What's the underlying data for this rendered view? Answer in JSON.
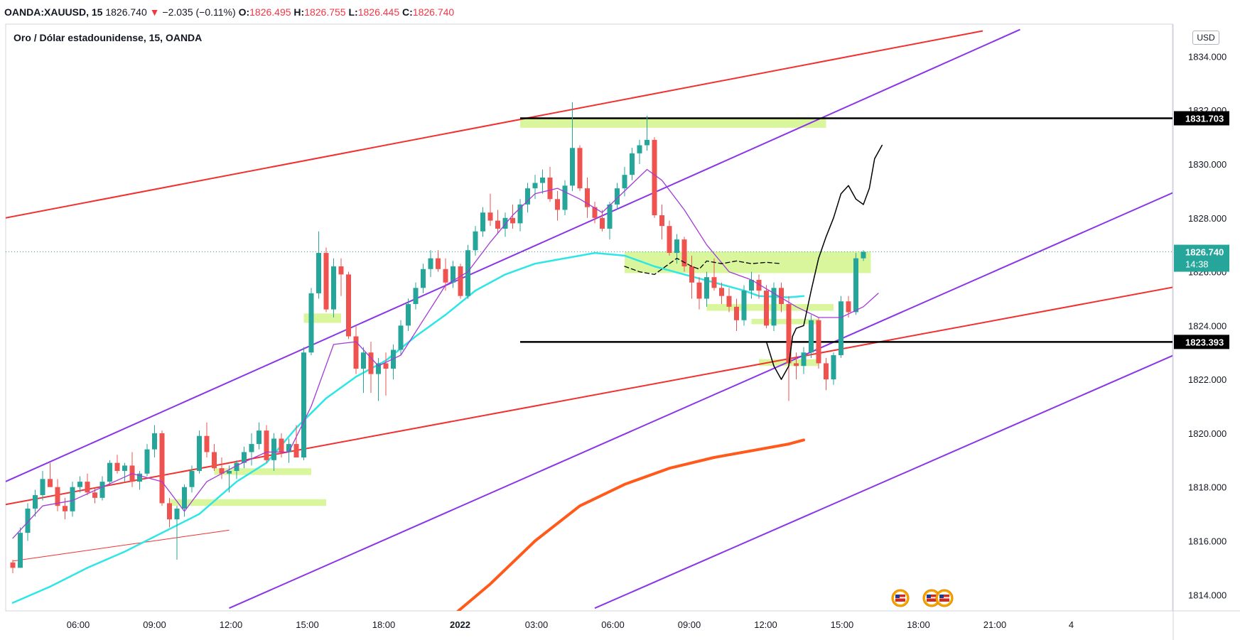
{
  "header": {
    "symbol": "OANDA:XAUUSD, 15",
    "last": "1826.740",
    "change": "−2.035 (−0.11%)",
    "o_label": "O:",
    "o_value": "1826.495",
    "h_label": "H:",
    "h_value": "1826.755",
    "l_label": "L:",
    "l_value": "1826.445",
    "c_label": "C:",
    "c_value": "1826.740"
  },
  "chart_title": "Oro / Dólar estadounidense, 15, OANDA",
  "currency": "USD",
  "colors": {
    "up": "#26a69a",
    "down": "#ef5350",
    "red_channel": "#f23030",
    "purple_channel": "#8b34e8",
    "cyan_ma": "#2ee6e6",
    "purple_ma": "#a23ad6",
    "orange_ma": "#ff5a1a",
    "zone": "#d4f58c",
    "price_line": "#26a69a"
  },
  "chart_data": {
    "type": "candlestick",
    "timeframe": "15",
    "ylim": [
      1813.4,
      1835.2
    ],
    "y_ticks": [
      "1834.000",
      "1832.000",
      "1830.000",
      "1828.000",
      "1826.000",
      "1824.000",
      "1822.000",
      "1820.000",
      "1818.000",
      "1816.000",
      "1814.000"
    ],
    "x_ticks": [
      {
        "label": "06:00",
        "bold": false
      },
      {
        "label": "09:00",
        "bold": false
      },
      {
        "label": "12:00",
        "bold": false
      },
      {
        "label": "15:00",
        "bold": false
      },
      {
        "label": "18:00",
        "bold": false
      },
      {
        "label": "2022",
        "bold": true
      },
      {
        "label": "03:00",
        "bold": false
      },
      {
        "label": "06:00",
        "bold": false
      },
      {
        "label": "09:00",
        "bold": false
      },
      {
        "label": "12:00",
        "bold": false
      },
      {
        "label": "15:00",
        "bold": false
      },
      {
        "label": "18:00",
        "bold": false
      },
      {
        "label": "21:00",
        "bold": false
      },
      {
        "label": "4",
        "bold": false
      }
    ],
    "price_labels": [
      {
        "value": 1831.703,
        "text": "1831.703",
        "style": "black"
      },
      {
        "value": 1826.74,
        "text": "1826.740",
        "sub": "14:38",
        "style": "green"
      },
      {
        "value": 1823.393,
        "text": "1823.393",
        "style": "black"
      }
    ],
    "horizontal_lines": [
      1831.703,
      1823.393
    ],
    "zones": [
      {
        "i0": 68,
        "i1": 109,
        "y0": 1831.7,
        "y1": 1831.35
      },
      {
        "i0": 82,
        "i1": 115,
        "y0": 1826.75,
        "y1": 1825.95
      },
      {
        "i0": 93,
        "i1": 110,
        "y0": 1824.8,
        "y1": 1824.55
      },
      {
        "i0": 99,
        "i1": 108,
        "y0": 1824.25,
        "y1": 1824.05
      },
      {
        "i0": 100,
        "i1": 108,
        "y0": 1822.75,
        "y1": 1822.5
      },
      {
        "i0": 39,
        "i1": 44,
        "y0": 1824.45,
        "y1": 1824.1
      },
      {
        "i0": 27,
        "i1": 40,
        "y0": 1818.7,
        "y1": 1818.45
      },
      {
        "i0": 21,
        "i1": 42,
        "y0": 1817.55,
        "y1": 1817.3
      }
    ],
    "trend_lines": [
      {
        "name": "",
        "color": "red",
        "i0": -1,
        "y0": 1828.0,
        "i1": 130,
        "y1": 1834.95
      },
      {
        "name": "",
        "color": "red",
        "i0": -1,
        "y0": 1817.35,
        "i1": 156,
        "y1": 1825.45
      },
      {
        "name": "",
        "color": "purple",
        "i0": -1,
        "y0": 1818.2,
        "i1": 135,
        "y1": 1835.0
      },
      {
        "name": "",
        "color": "purple",
        "i0": 29,
        "y0": 1813.5,
        "i1": 156,
        "y1": 1829.0
      },
      {
        "name": "",
        "color": "purple",
        "i0": 78,
        "y0": 1813.5,
        "i1": 156,
        "y1": 1822.95
      },
      {
        "name": "",
        "color": "thin-red",
        "i0": 0,
        "y0": 1815.25,
        "i1": 29,
        "y1": 1816.4
      }
    ],
    "candles": [
      [
        1815.2,
        1815.3,
        1814.8,
        1815.0
      ],
      [
        1815.0,
        1816.5,
        1815.0,
        1816.3
      ],
      [
        1816.3,
        1817.4,
        1816.0,
        1817.2
      ],
      [
        1817.2,
        1817.9,
        1816.9,
        1817.7
      ],
      [
        1817.7,
        1818.6,
        1817.5,
        1818.3
      ],
      [
        1818.3,
        1818.9,
        1818.1,
        1818.0
      ],
      [
        1818.0,
        1818.3,
        1817.1,
        1817.3
      ],
      [
        1817.3,
        1817.6,
        1816.8,
        1817.1
      ],
      [
        1817.1,
        1818.2,
        1816.9,
        1818.0
      ],
      [
        1818.0,
        1818.4,
        1817.8,
        1818.2
      ],
      [
        1818.2,
        1818.5,
        1817.7,
        1817.8
      ],
      [
        1817.8,
        1818.0,
        1817.4,
        1817.6
      ],
      [
        1817.6,
        1818.4,
        1817.5,
        1818.2
      ],
      [
        1818.2,
        1819.0,
        1818.1,
        1818.9
      ],
      [
        1818.9,
        1819.2,
        1818.5,
        1818.6
      ],
      [
        1818.6,
        1818.9,
        1818.2,
        1818.8
      ],
      [
        1818.8,
        1819.3,
        1818.0,
        1818.2
      ],
      [
        1818.2,
        1818.6,
        1817.9,
        1818.5
      ],
      [
        1818.5,
        1819.6,
        1818.4,
        1819.4
      ],
      [
        1819.4,
        1820.3,
        1819.1,
        1820.0
      ],
      [
        1820.0,
        1820.1,
        1817.3,
        1817.4
      ],
      [
        1817.4,
        1817.6,
        1816.5,
        1816.8
      ],
      [
        1816.8,
        1817.3,
        1815.3,
        1817.2
      ],
      [
        1817.2,
        1818.1,
        1816.9,
        1818.0
      ],
      [
        1818.0,
        1818.8,
        1817.8,
        1818.6
      ],
      [
        1818.6,
        1820.1,
        1818.5,
        1819.9
      ],
      [
        1819.9,
        1820.4,
        1819.1,
        1819.3
      ],
      [
        1819.3,
        1819.6,
        1818.6,
        1818.7
      ],
      [
        1818.7,
        1819.1,
        1818.3,
        1818.5
      ],
      [
        1818.5,
        1818.8,
        1817.8,
        1818.6
      ],
      [
        1818.6,
        1819.0,
        1818.3,
        1818.9
      ],
      [
        1818.9,
        1819.5,
        1818.7,
        1819.3
      ],
      [
        1819.3,
        1820.0,
        1818.8,
        1819.6
      ],
      [
        1819.6,
        1820.4,
        1819.4,
        1820.1
      ],
      [
        1820.1,
        1820.3,
        1818.9,
        1819.0
      ],
      [
        1819.0,
        1820.0,
        1818.6,
        1819.8
      ],
      [
        1819.8,
        1820.0,
        1819.1,
        1819.3
      ],
      [
        1819.3,
        1819.8,
        1818.9,
        1819.6
      ],
      [
        1819.6,
        1820.3,
        1819.2,
        1819.1
      ],
      [
        1819.1,
        1823.2,
        1819.0,
        1823.0
      ],
      [
        1823.0,
        1825.4,
        1822.9,
        1825.2
      ],
      [
        1825.2,
        1827.5,
        1825.0,
        1826.7
      ],
      [
        1826.7,
        1826.9,
        1824.5,
        1824.6
      ],
      [
        1824.6,
        1826.5,
        1824.3,
        1826.2
      ],
      [
        1826.2,
        1826.5,
        1825.1,
        1825.9
      ],
      [
        1825.9,
        1826.0,
        1823.5,
        1823.6
      ],
      [
        1823.6,
        1824.0,
        1822.2,
        1822.4
      ],
      [
        1822.4,
        1823.2,
        1821.5,
        1823.0
      ],
      [
        1823.0,
        1823.4,
        1821.5,
        1822.2
      ],
      [
        1822.2,
        1822.8,
        1821.2,
        1822.6
      ],
      [
        1822.6,
        1823.0,
        1821.4,
        1822.4
      ],
      [
        1822.4,
        1823.3,
        1822.0,
        1823.1
      ],
      [
        1823.1,
        1824.2,
        1822.9,
        1824.0
      ],
      [
        1824.0,
        1825.0,
        1823.8,
        1824.8
      ],
      [
        1824.8,
        1825.6,
        1824.6,
        1825.4
      ],
      [
        1825.4,
        1826.3,
        1825.2,
        1826.1
      ],
      [
        1826.1,
        1826.8,
        1825.8,
        1826.5
      ],
      [
        1826.5,
        1826.8,
        1826.0,
        1826.1
      ],
      [
        1826.1,
        1826.5,
        1825.3,
        1825.6
      ],
      [
        1825.6,
        1826.4,
        1825.4,
        1826.2
      ],
      [
        1826.2,
        1826.3,
        1825.0,
        1825.1
      ],
      [
        1825.1,
        1827.0,
        1825.0,
        1826.8
      ],
      [
        1826.8,
        1827.7,
        1826.6,
        1827.5
      ],
      [
        1827.5,
        1828.4,
        1827.3,
        1828.2
      ],
      [
        1828.2,
        1828.9,
        1827.7,
        1827.9
      ],
      [
        1827.9,
        1828.3,
        1827.4,
        1827.6
      ],
      [
        1827.6,
        1828.2,
        1827.3,
        1828.0
      ],
      [
        1828.0,
        1828.5,
        1827.6,
        1827.8
      ],
      [
        1827.8,
        1828.7,
        1827.5,
        1828.5
      ],
      [
        1828.5,
        1829.3,
        1828.2,
        1829.1
      ],
      [
        1829.1,
        1829.6,
        1828.7,
        1829.3
      ],
      [
        1829.3,
        1829.8,
        1828.9,
        1829.5
      ],
      [
        1829.5,
        1829.9,
        1828.6,
        1828.7
      ],
      [
        1828.7,
        1829.0,
        1827.9,
        1828.3
      ],
      [
        1828.3,
        1829.4,
        1828.1,
        1829.2
      ],
      [
        1829.2,
        1832.3,
        1829.0,
        1830.6
      ],
      [
        1830.6,
        1830.7,
        1829.0,
        1829.1
      ],
      [
        1829.1,
        1829.5,
        1828.0,
        1828.4
      ],
      [
        1828.4,
        1828.6,
        1827.8,
        1828.0
      ],
      [
        1828.0,
        1828.3,
        1827.5,
        1827.6
      ],
      [
        1827.6,
        1828.6,
        1827.2,
        1828.5
      ],
      [
        1828.5,
        1829.3,
        1828.3,
        1829.1
      ],
      [
        1829.1,
        1829.9,
        1828.8,
        1829.6
      ],
      [
        1829.6,
        1830.6,
        1829.4,
        1830.4
      ],
      [
        1830.4,
        1830.9,
        1830.0,
        1830.7
      ],
      [
        1830.7,
        1831.8,
        1830.5,
        1830.9
      ],
      [
        1830.9,
        1831.0,
        1828.0,
        1828.1
      ],
      [
        1828.1,
        1828.5,
        1827.2,
        1827.7
      ],
      [
        1827.7,
        1827.9,
        1826.6,
        1826.7
      ],
      [
        1826.7,
        1827.4,
        1826.3,
        1827.2
      ],
      [
        1827.2,
        1827.3,
        1826.0,
        1826.2
      ],
      [
        1826.2,
        1826.6,
        1825.0,
        1825.6
      ],
      [
        1825.6,
        1825.8,
        1824.6,
        1825.0
      ],
      [
        1825.0,
        1826.0,
        1824.7,
        1825.8
      ],
      [
        1825.8,
        1826.5,
        1825.3,
        1825.4
      ],
      [
        1825.4,
        1825.6,
        1824.8,
        1825.1
      ],
      [
        1825.1,
        1825.4,
        1824.5,
        1824.7
      ],
      [
        1824.7,
        1825.0,
        1823.8,
        1824.2
      ],
      [
        1824.2,
        1825.5,
        1824.0,
        1825.3
      ],
      [
        1825.3,
        1826.0,
        1825.0,
        1825.7
      ],
      [
        1825.7,
        1825.9,
        1825.0,
        1825.3
      ],
      [
        1825.3,
        1825.5,
        1823.9,
        1824.0
      ],
      [
        1824.0,
        1825.6,
        1823.8,
        1825.4
      ],
      [
        1825.4,
        1825.6,
        1824.5,
        1824.8
      ],
      [
        1824.8,
        1825.1,
        1821.2,
        1822.6
      ],
      [
        1822.6,
        1823.0,
        1822.0,
        1822.5
      ],
      [
        1822.5,
        1823.2,
        1822.2,
        1823.0
      ],
      [
        1823.0,
        1824.4,
        1822.8,
        1824.2
      ],
      [
        1824.2,
        1824.3,
        1822.4,
        1822.6
      ],
      [
        1822.6,
        1822.8,
        1821.6,
        1822.0
      ],
      [
        1822.0,
        1823.0,
        1821.8,
        1822.9
      ],
      [
        1822.9,
        1825.1,
        1822.8,
        1824.9
      ],
      [
        1824.9,
        1825.1,
        1824.3,
        1824.5
      ],
      [
        1824.5,
        1826.7,
        1824.4,
        1826.5
      ],
      [
        1826.5,
        1826.8,
        1826.4,
        1826.74
      ]
    ],
    "ma_cyan": [
      [
        0,
        1813.7
      ],
      [
        5,
        1814.3
      ],
      [
        10,
        1815.0
      ],
      [
        15,
        1815.6
      ],
      [
        20,
        1816.3
      ],
      [
        25,
        1817.0
      ],
      [
        30,
        1818.2
      ],
      [
        34,
        1818.9
      ],
      [
        38,
        1820.2
      ],
      [
        42,
        1821.3
      ],
      [
        46,
        1822.1
      ],
      [
        50,
        1822.7
      ],
      [
        54,
        1823.6
      ],
      [
        58,
        1824.4
      ],
      [
        62,
        1825.3
      ],
      [
        66,
        1825.9
      ],
      [
        70,
        1826.3
      ],
      [
        74,
        1826.5
      ],
      [
        78,
        1826.7
      ],
      [
        82,
        1826.6
      ],
      [
        86,
        1826.2
      ],
      [
        90,
        1825.9
      ],
      [
        94,
        1825.6
      ],
      [
        98,
        1825.3
      ],
      [
        100,
        1825.1
      ],
      [
        104,
        1825.05
      ],
      [
        106,
        1825.1
      ]
    ],
    "ma_purple": [
      [
        0,
        1816.1
      ],
      [
        4,
        1817.3
      ],
      [
        8,
        1817.5
      ],
      [
        12,
        1818.0
      ],
      [
        16,
        1818.5
      ],
      [
        20,
        1818.2
      ],
      [
        23,
        1817.1
      ],
      [
        26,
        1818.2
      ],
      [
        30,
        1818.8
      ],
      [
        34,
        1819.3
      ],
      [
        37,
        1819.3
      ],
      [
        40,
        1821.0
      ],
      [
        43,
        1823.3
      ],
      [
        46,
        1823.4
      ],
      [
        49,
        1822.5
      ],
      [
        52,
        1822.9
      ],
      [
        55,
        1824.2
      ],
      [
        58,
        1825.5
      ],
      [
        61,
        1826.0
      ],
      [
        64,
        1827.1
      ],
      [
        67,
        1828.1
      ],
      [
        70,
        1828.9
      ],
      [
        73,
        1829.1
      ],
      [
        76,
        1828.7
      ],
      [
        79,
        1828.2
      ],
      [
        82,
        1829.0
      ],
      [
        85,
        1829.8
      ],
      [
        87,
        1829.4
      ],
      [
        90,
        1828.3
      ],
      [
        93,
        1827.0
      ],
      [
        96,
        1826.0
      ],
      [
        99,
        1825.7
      ],
      [
        102,
        1825.2
      ],
      [
        105,
        1824.7
      ],
      [
        108,
        1824.3
      ],
      [
        111,
        1824.3
      ],
      [
        114,
        1824.7
      ],
      [
        116,
        1825.2
      ]
    ],
    "ma_orange": [
      [
        58,
        1813.0
      ],
      [
        64,
        1814.4
      ],
      [
        70,
        1816.0
      ],
      [
        76,
        1817.3
      ],
      [
        82,
        1818.1
      ],
      [
        88,
        1818.7
      ],
      [
        94,
        1819.1
      ],
      [
        100,
        1819.4
      ],
      [
        104,
        1819.6
      ],
      [
        106,
        1819.75
      ]
    ],
    "drawing_dashed": [
      [
        82,
        1826.2
      ],
      [
        84,
        1826.0
      ],
      [
        86,
        1825.9
      ],
      [
        88,
        1826.3
      ],
      [
        89,
        1826.5
      ],
      [
        91,
        1826.2
      ],
      [
        92,
        1826.1
      ],
      [
        93,
        1826.4
      ],
      [
        95,
        1826.3
      ],
      [
        97,
        1826.4
      ],
      [
        99,
        1826.3
      ],
      [
        101,
        1826.35
      ],
      [
        103,
        1826.3
      ]
    ],
    "drawing_curve": [
      [
        101,
        1823.4
      ],
      [
        102,
        1822.5
      ],
      [
        103,
        1822.0
      ],
      [
        104,
        1822.5
      ],
      [
        104.5,
        1823.6
      ],
      [
        105,
        1823.9
      ],
      [
        106,
        1824.0
      ],
      [
        107,
        1825.3
      ],
      [
        108,
        1826.5
      ],
      [
        109,
        1827.3
      ],
      [
        110,
        1828.0
      ],
      [
        111,
        1828.9
      ],
      [
        112,
        1829.2
      ],
      [
        113,
        1828.7
      ],
      [
        114,
        1828.5
      ],
      [
        114.8,
        1829.1
      ],
      [
        115.5,
        1830.2
      ],
      [
        116.5,
        1830.7
      ]
    ]
  }
}
